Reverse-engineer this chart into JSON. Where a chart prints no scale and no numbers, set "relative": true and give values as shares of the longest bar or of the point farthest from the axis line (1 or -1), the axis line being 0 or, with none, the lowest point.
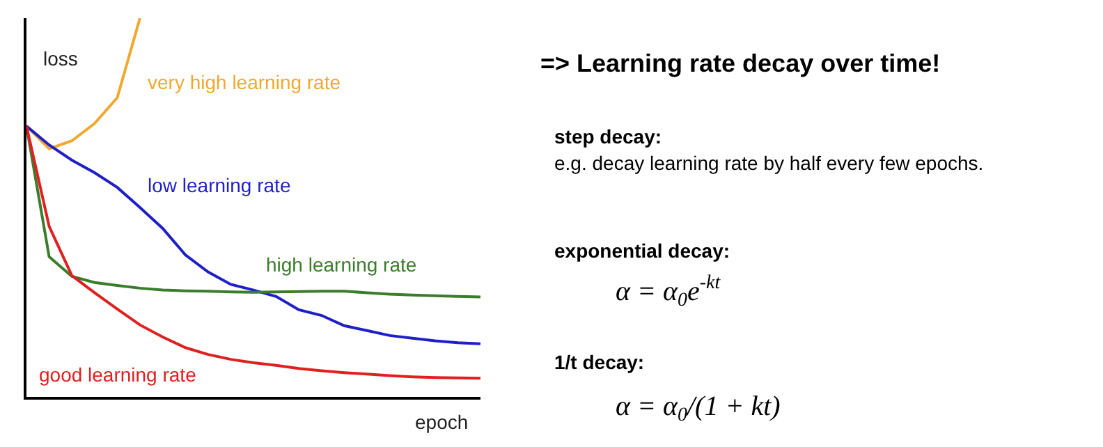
{
  "chart_data": {
    "type": "line",
    "relative": true,
    "title": "=> Learning rate decay over time!",
    "xlabel": "epoch",
    "ylabel": "loss",
    "line_style": "solid",
    "marker": "none",
    "legend": false,
    "categories": [
      null,
      null,
      null,
      null,
      null,
      null,
      null,
      null,
      null,
      null,
      null,
      null,
      null,
      null,
      null,
      null,
      null,
      null,
      null,
      null,
      null
    ],
    "series": [
      {
        "name": "very high learning rate",
        "color": "#f0a830",
        "values": [
          0.715,
          0.655,
          0.676,
          0.722,
          0.79,
          1.0,
          null,
          null,
          null,
          null,
          null,
          null,
          null,
          null,
          null,
          null,
          null,
          null,
          null,
          null,
          null
        ]
      },
      {
        "name": "low learning rate",
        "color": "#1f1fc8",
        "values": [
          0.715,
          0.665,
          0.625,
          0.592,
          0.553,
          0.5,
          0.445,
          0.375,
          0.33,
          0.297,
          0.282,
          0.265,
          0.23,
          0.215,
          0.188,
          0.175,
          0.162,
          0.155,
          0.148,
          0.143,
          0.14
        ]
      },
      {
        "name": "high learning rate",
        "color": "#3a7d2a",
        "values": [
          0.715,
          0.37,
          0.318,
          0.302,
          0.294,
          0.287,
          0.282,
          0.28,
          0.279,
          0.277,
          0.276,
          0.277,
          0.278,
          0.279,
          0.279,
          0.275,
          0.271,
          0.269,
          0.267,
          0.265,
          0.264
        ]
      },
      {
        "name": "good learning rate",
        "color": "#e02020",
        "values": [
          0.715,
          0.45,
          0.32,
          0.275,
          0.232,
          0.19,
          0.158,
          0.13,
          0.112,
          0.099,
          0.09,
          0.083,
          0.075,
          0.069,
          0.064,
          0.06,
          0.056,
          0.053,
          0.051,
          0.05,
          0.049
        ]
      }
    ],
    "annotations": [
      "step decay:",
      "e.g. decay learning rate by half every few epochs.",
      "exponential decay:",
      "α = α$_{0}$e$^{-kt}$",
      "1/t decay:",
      "α = α$_{0}$/(1 + kt)"
    ]
  }
}
